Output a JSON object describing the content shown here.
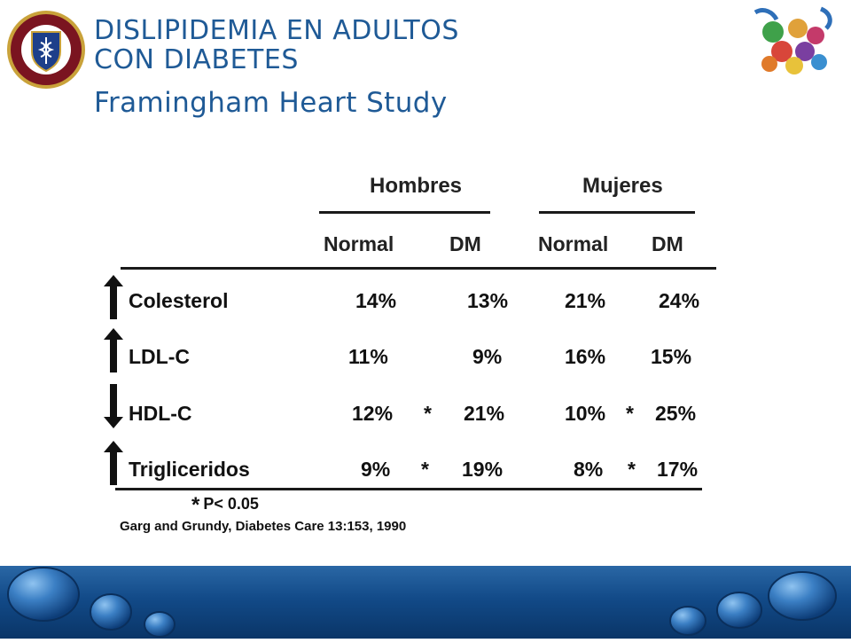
{
  "title": {
    "line1": "DISLIPIDEMIA EN ADULTOS",
    "line2": "CON DIABETES"
  },
  "subtitle": "Framingham Heart Study",
  "logos": {
    "left_icon": "university-seal-icon",
    "right_icon": "colored-figures-logo-icon"
  },
  "table": {
    "groups": [
      "Hombres",
      "Mujeres"
    ],
    "columns": [
      "Normal",
      "DM",
      "Normal",
      "DM"
    ],
    "rows": [
      {
        "label": "Colesterol",
        "direction": "up",
        "values": [
          "14%",
          "13%",
          "21%",
          "24%"
        ],
        "sig": [
          "",
          ""
        ]
      },
      {
        "label": "LDL-C",
        "direction": "up",
        "values": [
          "11%",
          "9%",
          "16%",
          "15%"
        ],
        "sig": [
          "",
          ""
        ]
      },
      {
        "label": "HDL-C",
        "direction": "down",
        "values": [
          "12%",
          "21%",
          "10%",
          "25%"
        ],
        "sig": [
          "*",
          "*"
        ]
      },
      {
        "label": "Trigliceridos",
        "direction": "up",
        "values": [
          "9%",
          "19%",
          "8%",
          "17%"
        ],
        "sig": [
          "*",
          "*"
        ]
      }
    ]
  },
  "footnote": {
    "star": "*",
    "text": "P< 0.05"
  },
  "source": "Garg and Grundy, Diabetes Care 13:153, 1990",
  "colors": {
    "title": "#1f5a96",
    "band": "#124a88",
    "text": "#111111"
  }
}
